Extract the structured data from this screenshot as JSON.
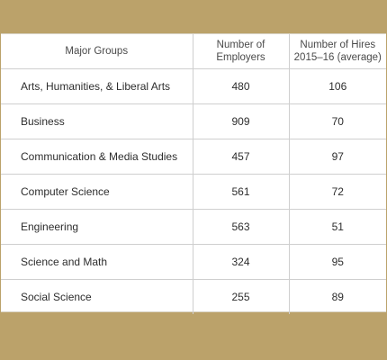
{
  "table": {
    "headers": {
      "major": "Major Groups",
      "employers": "Number of\nEmployers",
      "hires": "Number of Hires\n2015–16 (average)"
    },
    "rows": [
      {
        "major": "Arts, Humanities, & Liberal Arts",
        "employers": "480",
        "hires": "106"
      },
      {
        "major": "Business",
        "employers": "909",
        "hires": "70"
      },
      {
        "major": "Communication & Media Studies",
        "employers": "457",
        "hires": "97"
      },
      {
        "major": "Computer Science",
        "employers": "561",
        "hires": "72"
      },
      {
        "major": "Engineering",
        "employers": "563",
        "hires": "51"
      },
      {
        "major": "Science and Math",
        "employers": "324",
        "hires": "95"
      },
      {
        "major": "Social Science",
        "employers": "255",
        "hires": "89"
      }
    ]
  },
  "colors": {
    "band": "#bba26a",
    "panel": "#ffffff",
    "rule": "#cfcfcf"
  }
}
